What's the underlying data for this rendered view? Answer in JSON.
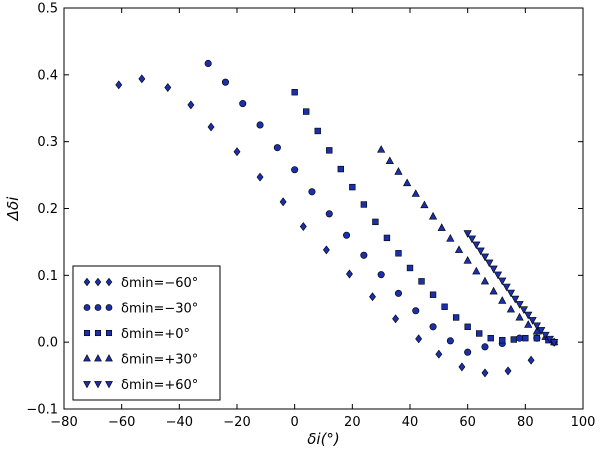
{
  "chart_data": {
    "type": "scatter",
    "title": "",
    "xlabel": "δi(°)",
    "ylabel": "Δδi",
    "xlim": [
      -80,
      100
    ],
    "ylim": [
      -0.1,
      0.5
    ],
    "xticks": [
      "−80",
      "−60",
      "−40",
      "−20",
      "0",
      "20",
      "40",
      "60",
      "80",
      "100"
    ],
    "yticks": [
      "−0.1",
      "0.0",
      "0.1",
      "0.2",
      "0.3",
      "0.4",
      "0.5"
    ],
    "grid": false,
    "legend_position": "lower-left",
    "marker_color": "#1a2fa8",
    "marker_edge_color": "#000000",
    "series": [
      {
        "name": "δmin=−60°",
        "marker": "diamond",
        "points": [
          [
            -61,
            0.385
          ],
          [
            -53,
            0.394
          ],
          [
            -44,
            0.381
          ],
          [
            -36,
            0.355
          ],
          [
            -29,
            0.322
          ],
          [
            -20,
            0.285
          ],
          [
            -12,
            0.247
          ],
          [
            -4,
            0.21
          ],
          [
            3,
            0.173
          ],
          [
            11,
            0.138
          ],
          [
            19,
            0.102
          ],
          [
            27,
            0.068
          ],
          [
            35,
            0.035
          ],
          [
            43,
            0.005
          ],
          [
            50,
            -0.018
          ],
          [
            58,
            -0.037
          ],
          [
            66,
            -0.046
          ],
          [
            74,
            -0.043
          ],
          [
            82,
            -0.027
          ],
          [
            90,
            0.0
          ]
        ]
      },
      {
        "name": "δmin=−30°",
        "marker": "circle",
        "points": [
          [
            -30,
            0.417
          ],
          [
            -24,
            0.389
          ],
          [
            -18,
            0.357
          ],
          [
            -12,
            0.325
          ],
          [
            -6,
            0.291
          ],
          [
            0,
            0.258
          ],
          [
            6,
            0.225
          ],
          [
            12,
            0.192
          ],
          [
            18,
            0.16
          ],
          [
            24,
            0.13
          ],
          [
            30,
            0.101
          ],
          [
            36,
            0.073
          ],
          [
            42,
            0.047
          ],
          [
            48,
            0.023
          ],
          [
            54,
            0.002
          ],
          [
            60,
            -0.015
          ],
          [
            66,
            -0.007
          ],
          [
            72,
            -0.002
          ],
          [
            78,
            0.006
          ],
          [
            84,
            0.006
          ],
          [
            90,
            0.0
          ]
        ]
      },
      {
        "name": "δmin=+0°",
        "marker": "square",
        "points": [
          [
            0,
            0.374
          ],
          [
            4,
            0.345
          ],
          [
            8,
            0.316
          ],
          [
            12,
            0.287
          ],
          [
            16,
            0.259
          ],
          [
            20,
            0.232
          ],
          [
            24,
            0.206
          ],
          [
            28,
            0.18
          ],
          [
            32,
            0.156
          ],
          [
            36,
            0.133
          ],
          [
            40,
            0.111
          ],
          [
            44,
            0.091
          ],
          [
            48,
            0.071
          ],
          [
            52,
            0.053
          ],
          [
            56,
            0.037
          ],
          [
            60,
            0.023
          ],
          [
            64,
            0.013
          ],
          [
            68,
            0.006
          ],
          [
            72,
            0.003
          ],
          [
            76,
            0.004
          ],
          [
            80,
            0.006
          ],
          [
            84,
            0.006
          ],
          [
            88,
            0.003
          ],
          [
            90,
            0.0
          ]
        ]
      },
      {
        "name": "δmin=+30°",
        "marker": "triangle-up",
        "points": [
          [
            30,
            0.288
          ],
          [
            33,
            0.271
          ],
          [
            36,
            0.255
          ],
          [
            39,
            0.238
          ],
          [
            42,
            0.222
          ],
          [
            45,
            0.205
          ],
          [
            48,
            0.188
          ],
          [
            51,
            0.171
          ],
          [
            54,
            0.155
          ],
          [
            57,
            0.138
          ],
          [
            60,
            0.122
          ],
          [
            63,
            0.106
          ],
          [
            66,
            0.091
          ],
          [
            69,
            0.076
          ],
          [
            72,
            0.062
          ],
          [
            75,
            0.049
          ],
          [
            78,
            0.037
          ],
          [
            81,
            0.026
          ],
          [
            84,
            0.016
          ],
          [
            87,
            0.008
          ],
          [
            90,
            0.0
          ]
        ]
      },
      {
        "name": "δmin=+60°",
        "marker": "triangle-down",
        "points": [
          [
            60,
            0.163
          ],
          [
            61.5,
            0.155
          ],
          [
            63,
            0.146
          ],
          [
            64.5,
            0.137
          ],
          [
            66,
            0.128
          ],
          [
            67.5,
            0.119
          ],
          [
            69,
            0.11
          ],
          [
            70.5,
            0.101
          ],
          [
            72,
            0.092
          ],
          [
            73.5,
            0.083
          ],
          [
            75,
            0.074
          ],
          [
            76.5,
            0.065
          ],
          [
            78,
            0.057
          ],
          [
            79.5,
            0.049
          ],
          [
            81,
            0.041
          ],
          [
            82.5,
            0.033
          ],
          [
            84,
            0.025
          ],
          [
            85.5,
            0.018
          ],
          [
            87,
            0.011
          ],
          [
            88.5,
            0.005
          ],
          [
            90,
            0.0
          ]
        ]
      }
    ]
  }
}
